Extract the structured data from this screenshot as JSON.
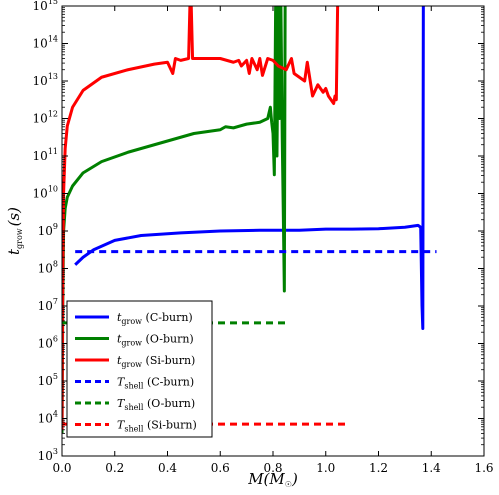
{
  "chart_data": {
    "type": "line",
    "xlabel": "M(M☉)",
    "ylabel": "t_grow (s)",
    "xlim": [
      0.0,
      1.6
    ],
    "ylim_log10": [
      3,
      15
    ],
    "y_scale": "log",
    "x_ticks": [
      "0.0",
      "0.2",
      "0.4",
      "0.6",
      "0.8",
      "1.0",
      "1.2",
      "1.4",
      "1.6"
    ],
    "y_ticks": [
      {
        "base": "10",
        "exp": "3"
      },
      {
        "base": "10",
        "exp": "4"
      },
      {
        "base": "10",
        "exp": "5"
      },
      {
        "base": "10",
        "exp": "6"
      },
      {
        "base": "10",
        "exp": "7"
      },
      {
        "base": "10",
        "exp": "8"
      },
      {
        "base": "10",
        "exp": "9"
      },
      {
        "base": "10",
        "exp": "10"
      },
      {
        "base": "10",
        "exp": "11"
      },
      {
        "base": "10",
        "exp": "12"
      },
      {
        "base": "10",
        "exp": "13"
      },
      {
        "base": "10",
        "exp": "14"
      },
      {
        "base": "10",
        "exp": "15"
      }
    ],
    "legend_position": "lower-left",
    "legend": [
      {
        "sym": "t",
        "sub": "grow",
        "rest": " (C-burn)",
        "color": "#0000ff",
        "dashed": false
      },
      {
        "sym": "t",
        "sub": "grow",
        "rest": " (O-burn)",
        "color": "#008000",
        "dashed": false
      },
      {
        "sym": "t",
        "sub": "grow",
        "rest": " (Si-burn)",
        "color": "#ff0000",
        "dashed": false
      },
      {
        "sym": "T",
        "sub": "shell",
        "rest": " (C-burn)",
        "color": "#0000ff",
        "dashed": true
      },
      {
        "sym": "T",
        "sub": "shell",
        "rest": " (O-burn)",
        "color": "#008000",
        "dashed": true
      },
      {
        "sym": "T",
        "sub": "shell",
        "rest": " (Si-burn)",
        "color": "#ff0000",
        "dashed": true
      }
    ],
    "series": [
      {
        "name": "t_grow (C-burn)",
        "color": "#0000ff",
        "style": "solid",
        "points": [
          [
            0.05,
            8.1
          ],
          [
            0.08,
            8.3
          ],
          [
            0.12,
            8.5
          ],
          [
            0.2,
            8.75
          ],
          [
            0.3,
            8.88
          ],
          [
            0.45,
            8.95
          ],
          [
            0.6,
            9.0
          ],
          [
            0.75,
            9.02
          ],
          [
            0.9,
            9.02
          ],
          [
            1.0,
            9.05
          ],
          [
            1.1,
            9.05
          ],
          [
            1.2,
            9.06
          ],
          [
            1.3,
            9.1
          ],
          [
            1.35,
            9.15
          ],
          [
            1.36,
            9.1
          ],
          [
            1.365,
            7.0
          ],
          [
            1.368,
            6.4
          ],
          [
            1.37,
            15.0
          ],
          [
            1.372,
            15.0
          ]
        ]
      },
      {
        "name": "t_grow (O-burn)",
        "color": "#008000",
        "style": "solid",
        "points": [
          [
            0.0,
            3.6
          ],
          [
            0.003,
            7.0
          ],
          [
            0.006,
            9.0
          ],
          [
            0.012,
            9.6
          ],
          [
            0.02,
            9.9
          ],
          [
            0.04,
            10.2
          ],
          [
            0.08,
            10.55
          ],
          [
            0.15,
            10.85
          ],
          [
            0.25,
            11.1
          ],
          [
            0.35,
            11.3
          ],
          [
            0.45,
            11.5
          ],
          [
            0.5,
            11.6
          ],
          [
            0.55,
            11.65
          ],
          [
            0.6,
            11.7
          ],
          [
            0.62,
            11.78
          ],
          [
            0.65,
            11.75
          ],
          [
            0.7,
            11.85
          ],
          [
            0.75,
            11.9
          ],
          [
            0.78,
            12.0
          ],
          [
            0.79,
            12.3
          ],
          [
            0.795,
            11.9
          ],
          [
            0.8,
            11.6
          ],
          [
            0.805,
            10.5
          ],
          [
            0.81,
            15.0
          ],
          [
            0.815,
            11.0
          ],
          [
            0.82,
            15.0
          ],
          [
            0.825,
            12.0
          ],
          [
            0.83,
            15.0
          ],
          [
            0.835,
            11.5
          ],
          [
            0.84,
            9.0
          ],
          [
            0.843,
            7.4
          ],
          [
            0.846,
            15.0
          ]
        ]
      },
      {
        "name": "t_grow (Si-burn)",
        "color": "#ff0000",
        "style": "solid",
        "points": [
          [
            0.0,
            3.7
          ],
          [
            0.003,
            8.0
          ],
          [
            0.006,
            10.0
          ],
          [
            0.012,
            11.2
          ],
          [
            0.02,
            11.8
          ],
          [
            0.04,
            12.3
          ],
          [
            0.08,
            12.75
          ],
          [
            0.15,
            13.1
          ],
          [
            0.25,
            13.3
          ],
          [
            0.35,
            13.45
          ],
          [
            0.4,
            13.5
          ],
          [
            0.42,
            13.2
          ],
          [
            0.43,
            13.6
          ],
          [
            0.45,
            13.55
          ],
          [
            0.48,
            13.6
          ],
          [
            0.485,
            15.0
          ],
          [
            0.49,
            15.0
          ],
          [
            0.495,
            13.6
          ],
          [
            0.55,
            13.6
          ],
          [
            0.6,
            13.6
          ],
          [
            0.65,
            13.5
          ],
          [
            0.67,
            13.55
          ],
          [
            0.68,
            13.4
          ],
          [
            0.7,
            13.55
          ],
          [
            0.71,
            13.2
          ],
          [
            0.72,
            13.6
          ],
          [
            0.74,
            13.3
          ],
          [
            0.75,
            13.6
          ],
          [
            0.76,
            13.15
          ],
          [
            0.78,
            13.6
          ],
          [
            0.8,
            13.55
          ],
          [
            0.82,
            13.4
          ],
          [
            0.85,
            13.3
          ],
          [
            0.87,
            13.6
          ],
          [
            0.88,
            13.2
          ],
          [
            0.9,
            13.1
          ],
          [
            0.92,
            13.0
          ],
          [
            0.93,
            13.5
          ],
          [
            0.95,
            12.6
          ],
          [
            0.97,
            12.9
          ],
          [
            0.99,
            12.7
          ],
          [
            1.0,
            12.8
          ],
          [
            1.01,
            12.6
          ],
          [
            1.02,
            12.5
          ],
          [
            1.03,
            12.4
          ],
          [
            1.035,
            12.6
          ],
          [
            1.04,
            12.5
          ],
          [
            1.045,
            15.0
          ]
        ]
      },
      {
        "name": "T_shell (C-burn)",
        "color": "#0000ff",
        "style": "dashed",
        "points": [
          [
            0.05,
            8.45
          ],
          [
            1.42,
            8.45
          ]
        ]
      },
      {
        "name": "T_shell (O-burn)",
        "color": "#008000",
        "style": "dashed",
        "points": [
          [
            0.0,
            6.55
          ],
          [
            0.85,
            6.55
          ]
        ]
      },
      {
        "name": "T_shell (Si-burn)",
        "color": "#ff0000",
        "style": "dashed",
        "points": [
          [
            0.0,
            3.85
          ],
          [
            1.08,
            3.85
          ]
        ]
      }
    ]
  }
}
